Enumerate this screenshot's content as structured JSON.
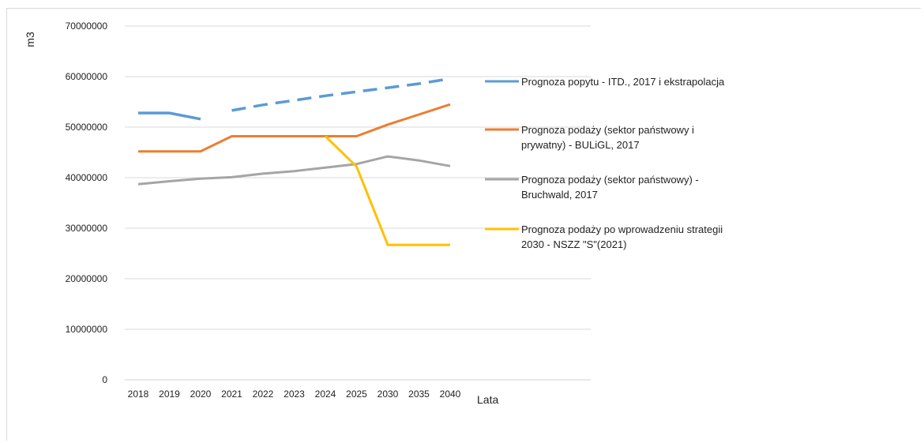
{
  "chart_data": {
    "type": "line",
    "title": "",
    "xlabel": "Lata",
    "ylabel": "m3",
    "ylim": [
      0,
      70000000
    ],
    "yticks": [
      0,
      10000000,
      20000000,
      30000000,
      40000000,
      50000000,
      60000000,
      70000000
    ],
    "ytick_labels": [
      "0",
      "10000000",
      "20000000",
      "30000000",
      "40000000",
      "50000000",
      "60000000",
      "70000000"
    ],
    "grid": "horizontal",
    "legend_position": "right",
    "categories": [
      "2018",
      "2019",
      "2020",
      "2021",
      "2022",
      "2023",
      "2024",
      "2025",
      "2030",
      "2035",
      "2040"
    ],
    "series": [
      {
        "name": "Prognoza popytu - ITD., 2017 i ekstrapolacja",
        "color": "#5b9bd5",
        "legend_lines": [
          "Prognoza popytu - ITD., 2017 i ekstrapolacja"
        ],
        "values": [
          52800000,
          52800000,
          51600000,
          53300000,
          54400000,
          55300000,
          56200000,
          57000000,
          57800000,
          58600000,
          59600000
        ],
        "dashed_from_index": 3
      },
      {
        "name": "Prognoza podaży (sektor państwowy i prywatny) - BULiGL, 2017",
        "color": "#ed7d31",
        "legend_lines": [
          "Prognoza podaży (sektor państwowy i",
          "prywatny) - BULiGL, 2017"
        ],
        "values": [
          45200000,
          45200000,
          45200000,
          48200000,
          48200000,
          48200000,
          48200000,
          48200000,
          50500000,
          52500000,
          54500000
        ]
      },
      {
        "name": "Prognoza podaży (sektor państwowy) - Bruchwald, 2017",
        "color": "#a5a5a5",
        "legend_lines": [
          "Prognoza podaży (sektor państwowy) -",
          "Bruchwald, 2017"
        ],
        "values": [
          38700000,
          39300000,
          39800000,
          40100000,
          40800000,
          41300000,
          42000000,
          42700000,
          44200000,
          43400000,
          42300000
        ]
      },
      {
        "name": "Prognoza podaży po wprowadzeniu strategii 2030 - NSZZ \"S\"(2021)",
        "color": "#ffc000",
        "legend_lines": [
          "Prognoza podaży po wprowadzeniu strategii",
          "2030 - NSZZ \"S\"(2021)"
        ],
        "values": [
          null,
          null,
          null,
          null,
          null,
          null,
          48200000,
          42200000,
          26700000,
          26700000,
          26700000
        ]
      }
    ]
  }
}
